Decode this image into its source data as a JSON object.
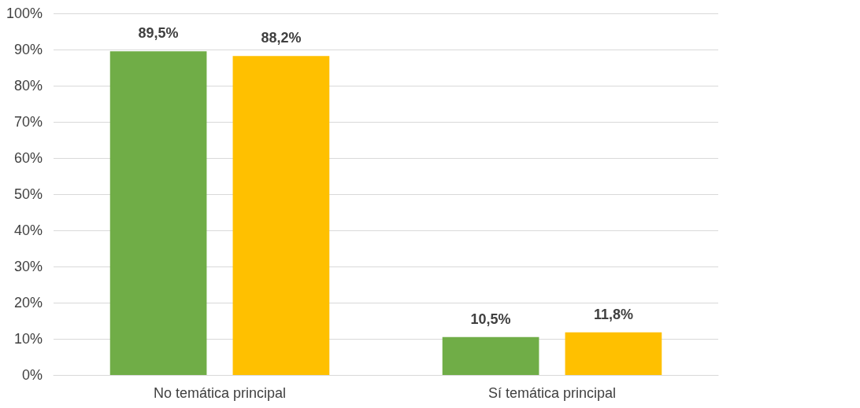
{
  "chart_data": {
    "type": "bar",
    "categories": [
      "No temática principal",
      "Sí temática principal"
    ],
    "series": [
      {
        "color": "#70ad47",
        "values": [
          89.5,
          10.5
        ],
        "value_labels": [
          "89,5%",
          "10,5%"
        ]
      },
      {
        "color": "#ffc000",
        "values": [
          88.2,
          11.8
        ],
        "value_labels": [
          "88,2%",
          "11,8%"
        ]
      }
    ],
    "ylim": [
      0,
      100
    ],
    "yticks": [
      {
        "value": 0,
        "label": "0%"
      },
      {
        "value": 10,
        "label": "10%"
      },
      {
        "value": 20,
        "label": "20%"
      },
      {
        "value": 30,
        "label": "30%"
      },
      {
        "value": 40,
        "label": "40%"
      },
      {
        "value": 50,
        "label": "50%"
      },
      {
        "value": 60,
        "label": "60%"
      },
      {
        "value": 70,
        "label": "70%"
      },
      {
        "value": 80,
        "label": "80%"
      },
      {
        "value": 90,
        "label": "90%"
      },
      {
        "value": 100,
        "label": "100%"
      }
    ],
    "grid": "y"
  }
}
